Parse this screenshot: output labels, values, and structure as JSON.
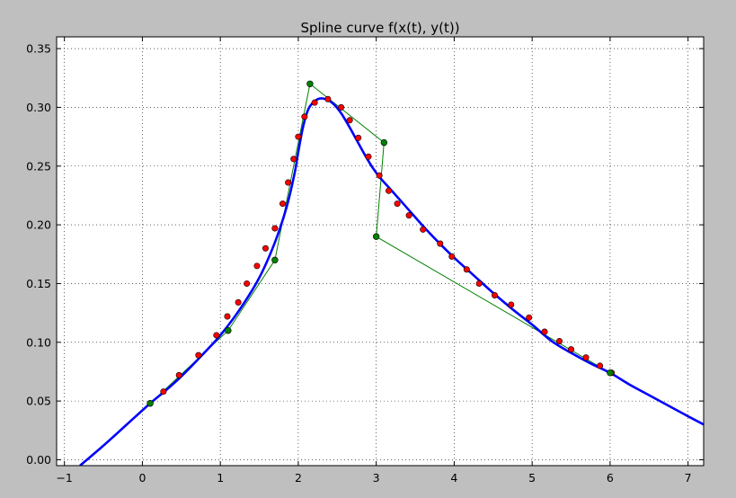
{
  "chart_data": {
    "type": "line",
    "title": "Spline curve f(x(t), y(t))",
    "xlabel": "",
    "ylabel": "",
    "xlim": [
      -1.1,
      7.2
    ],
    "ylim": [
      -0.005,
      0.36
    ],
    "x_ticks": [
      -1,
      0,
      1,
      2,
      3,
      4,
      5,
      6,
      7
    ],
    "x_tick_labels": [
      "−1",
      "0",
      "1",
      "2",
      "3",
      "4",
      "5",
      "6",
      "7"
    ],
    "y_ticks": [
      0.0,
      0.05,
      0.1,
      0.15,
      0.2,
      0.25,
      0.3,
      0.35
    ],
    "y_tick_labels": [
      "0.00",
      "0.05",
      "0.10",
      "0.15",
      "0.20",
      "0.25",
      "0.30",
      "0.35"
    ],
    "grid": true,
    "series": [
      {
        "kind": "control-polygon",
        "color": "#008000",
        "x": [
          0.1,
          1.1,
          1.7,
          2.15,
          3.1,
          3.0,
          6.0
        ],
        "y": [
          0.048,
          0.11,
          0.17,
          0.32,
          0.27,
          0.19,
          0.074
        ]
      },
      {
        "kind": "spline-curve",
        "color": "#0000ff",
        "x": [
          -0.8,
          -0.5,
          -0.2,
          0.1,
          0.3,
          0.5,
          0.75,
          1.0,
          1.25,
          1.5,
          1.7,
          1.85,
          1.95,
          2.0,
          2.05,
          2.1,
          2.15,
          2.25,
          2.35,
          2.45,
          2.55,
          2.65,
          2.75,
          2.85,
          2.95,
          3.05,
          3.2,
          3.4,
          3.6,
          3.8,
          4.0,
          4.25,
          4.5,
          4.75,
          5.0,
          5.25,
          5.5,
          5.75,
          6.0,
          6.25,
          6.5,
          6.75,
          7.0,
          7.2
        ],
        "y": [
          -0.005,
          0.012,
          0.03,
          0.048,
          0.059,
          0.071,
          0.088,
          0.106,
          0.128,
          0.155,
          0.185,
          0.215,
          0.243,
          0.262,
          0.28,
          0.293,
          0.301,
          0.307,
          0.307,
          0.303,
          0.295,
          0.284,
          0.272,
          0.26,
          0.249,
          0.24,
          0.229,
          0.214,
          0.199,
          0.185,
          0.172,
          0.157,
          0.142,
          0.128,
          0.115,
          0.101,
          0.091,
          0.082,
          0.074,
          0.064,
          0.055,
          0.046,
          0.037,
          0.03
        ]
      },
      {
        "kind": "sample-points",
        "color": "#ff0000",
        "x": [
          0.1,
          0.27,
          0.47,
          0.72,
          0.95,
          1.09,
          1.23,
          1.34,
          1.47,
          1.58,
          1.7,
          1.8,
          1.87,
          1.94,
          2.0,
          2.08,
          2.21,
          2.38,
          2.55,
          2.66,
          2.77,
          2.9,
          3.04,
          3.16,
          3.27,
          3.42,
          3.6,
          3.82,
          3.97,
          4.16,
          4.32,
          4.52,
          4.73,
          4.96,
          5.16,
          5.35,
          5.5,
          5.69,
          5.87,
          6.02
        ],
        "y": [
          0.048,
          0.058,
          0.072,
          0.089,
          0.106,
          0.122,
          0.134,
          0.15,
          0.165,
          0.18,
          0.197,
          0.218,
          0.236,
          0.256,
          0.275,
          0.292,
          0.304,
          0.307,
          0.3,
          0.289,
          0.274,
          0.258,
          0.242,
          0.229,
          0.218,
          0.208,
          0.196,
          0.184,
          0.173,
          0.162,
          0.15,
          0.14,
          0.132,
          0.121,
          0.109,
          0.101,
          0.094,
          0.087,
          0.08,
          0.074
        ]
      }
    ]
  }
}
